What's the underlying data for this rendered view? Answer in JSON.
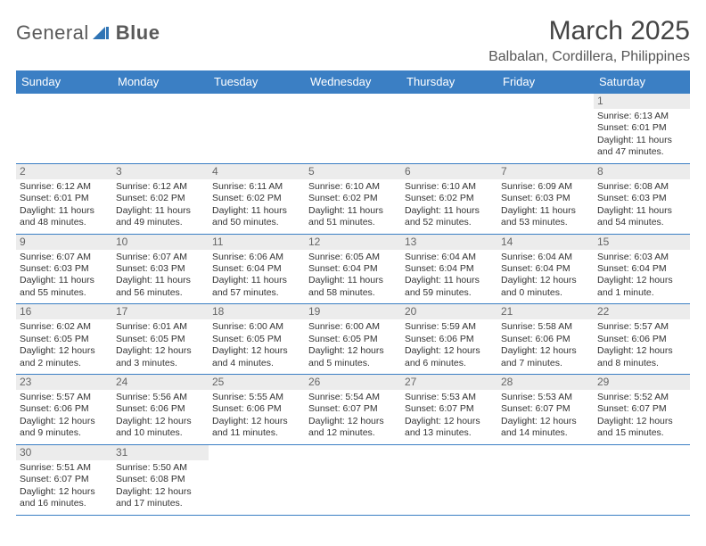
{
  "logo": {
    "text_a": "General",
    "text_b": "Blue"
  },
  "header": {
    "month": "March 2025",
    "location": "Balbalan, Cordillera, Philippines"
  },
  "colors": {
    "header_blue": "#3b7fc4",
    "grid_line": "#3b7fc4"
  },
  "dow": [
    "Sunday",
    "Monday",
    "Tuesday",
    "Wednesday",
    "Thursday",
    "Friday",
    "Saturday"
  ],
  "weeks": [
    [
      {
        "n": "",
        "sr": "",
        "ss": "",
        "dl": ""
      },
      {
        "n": "",
        "sr": "",
        "ss": "",
        "dl": ""
      },
      {
        "n": "",
        "sr": "",
        "ss": "",
        "dl": ""
      },
      {
        "n": "",
        "sr": "",
        "ss": "",
        "dl": ""
      },
      {
        "n": "",
        "sr": "",
        "ss": "",
        "dl": ""
      },
      {
        "n": "",
        "sr": "",
        "ss": "",
        "dl": ""
      },
      {
        "n": "1",
        "sr": "Sunrise: 6:13 AM",
        "ss": "Sunset: 6:01 PM",
        "dl": "Daylight: 11 hours and 47 minutes."
      }
    ],
    [
      {
        "n": "2",
        "sr": "Sunrise: 6:12 AM",
        "ss": "Sunset: 6:01 PM",
        "dl": "Daylight: 11 hours and 48 minutes."
      },
      {
        "n": "3",
        "sr": "Sunrise: 6:12 AM",
        "ss": "Sunset: 6:02 PM",
        "dl": "Daylight: 11 hours and 49 minutes."
      },
      {
        "n": "4",
        "sr": "Sunrise: 6:11 AM",
        "ss": "Sunset: 6:02 PM",
        "dl": "Daylight: 11 hours and 50 minutes."
      },
      {
        "n": "5",
        "sr": "Sunrise: 6:10 AM",
        "ss": "Sunset: 6:02 PM",
        "dl": "Daylight: 11 hours and 51 minutes."
      },
      {
        "n": "6",
        "sr": "Sunrise: 6:10 AM",
        "ss": "Sunset: 6:02 PM",
        "dl": "Daylight: 11 hours and 52 minutes."
      },
      {
        "n": "7",
        "sr": "Sunrise: 6:09 AM",
        "ss": "Sunset: 6:03 PM",
        "dl": "Daylight: 11 hours and 53 minutes."
      },
      {
        "n": "8",
        "sr": "Sunrise: 6:08 AM",
        "ss": "Sunset: 6:03 PM",
        "dl": "Daylight: 11 hours and 54 minutes."
      }
    ],
    [
      {
        "n": "9",
        "sr": "Sunrise: 6:07 AM",
        "ss": "Sunset: 6:03 PM",
        "dl": "Daylight: 11 hours and 55 minutes."
      },
      {
        "n": "10",
        "sr": "Sunrise: 6:07 AM",
        "ss": "Sunset: 6:03 PM",
        "dl": "Daylight: 11 hours and 56 minutes."
      },
      {
        "n": "11",
        "sr": "Sunrise: 6:06 AM",
        "ss": "Sunset: 6:04 PM",
        "dl": "Daylight: 11 hours and 57 minutes."
      },
      {
        "n": "12",
        "sr": "Sunrise: 6:05 AM",
        "ss": "Sunset: 6:04 PM",
        "dl": "Daylight: 11 hours and 58 minutes."
      },
      {
        "n": "13",
        "sr": "Sunrise: 6:04 AM",
        "ss": "Sunset: 6:04 PM",
        "dl": "Daylight: 11 hours and 59 minutes."
      },
      {
        "n": "14",
        "sr": "Sunrise: 6:04 AM",
        "ss": "Sunset: 6:04 PM",
        "dl": "Daylight: 12 hours and 0 minutes."
      },
      {
        "n": "15",
        "sr": "Sunrise: 6:03 AM",
        "ss": "Sunset: 6:04 PM",
        "dl": "Daylight: 12 hours and 1 minute."
      }
    ],
    [
      {
        "n": "16",
        "sr": "Sunrise: 6:02 AM",
        "ss": "Sunset: 6:05 PM",
        "dl": "Daylight: 12 hours and 2 minutes."
      },
      {
        "n": "17",
        "sr": "Sunrise: 6:01 AM",
        "ss": "Sunset: 6:05 PM",
        "dl": "Daylight: 12 hours and 3 minutes."
      },
      {
        "n": "18",
        "sr": "Sunrise: 6:00 AM",
        "ss": "Sunset: 6:05 PM",
        "dl": "Daylight: 12 hours and 4 minutes."
      },
      {
        "n": "19",
        "sr": "Sunrise: 6:00 AM",
        "ss": "Sunset: 6:05 PM",
        "dl": "Daylight: 12 hours and 5 minutes."
      },
      {
        "n": "20",
        "sr": "Sunrise: 5:59 AM",
        "ss": "Sunset: 6:06 PM",
        "dl": "Daylight: 12 hours and 6 minutes."
      },
      {
        "n": "21",
        "sr": "Sunrise: 5:58 AM",
        "ss": "Sunset: 6:06 PM",
        "dl": "Daylight: 12 hours and 7 minutes."
      },
      {
        "n": "22",
        "sr": "Sunrise: 5:57 AM",
        "ss": "Sunset: 6:06 PM",
        "dl": "Daylight: 12 hours and 8 minutes."
      }
    ],
    [
      {
        "n": "23",
        "sr": "Sunrise: 5:57 AM",
        "ss": "Sunset: 6:06 PM",
        "dl": "Daylight: 12 hours and 9 minutes."
      },
      {
        "n": "24",
        "sr": "Sunrise: 5:56 AM",
        "ss": "Sunset: 6:06 PM",
        "dl": "Daylight: 12 hours and 10 minutes."
      },
      {
        "n": "25",
        "sr": "Sunrise: 5:55 AM",
        "ss": "Sunset: 6:06 PM",
        "dl": "Daylight: 12 hours and 11 minutes."
      },
      {
        "n": "26",
        "sr": "Sunrise: 5:54 AM",
        "ss": "Sunset: 6:07 PM",
        "dl": "Daylight: 12 hours and 12 minutes."
      },
      {
        "n": "27",
        "sr": "Sunrise: 5:53 AM",
        "ss": "Sunset: 6:07 PM",
        "dl": "Daylight: 12 hours and 13 minutes."
      },
      {
        "n": "28",
        "sr": "Sunrise: 5:53 AM",
        "ss": "Sunset: 6:07 PM",
        "dl": "Daylight: 12 hours and 14 minutes."
      },
      {
        "n": "29",
        "sr": "Sunrise: 5:52 AM",
        "ss": "Sunset: 6:07 PM",
        "dl": "Daylight: 12 hours and 15 minutes."
      }
    ],
    [
      {
        "n": "30",
        "sr": "Sunrise: 5:51 AM",
        "ss": "Sunset: 6:07 PM",
        "dl": "Daylight: 12 hours and 16 minutes."
      },
      {
        "n": "31",
        "sr": "Sunrise: 5:50 AM",
        "ss": "Sunset: 6:08 PM",
        "dl": "Daylight: 12 hours and 17 minutes."
      },
      {
        "n": "",
        "sr": "",
        "ss": "",
        "dl": ""
      },
      {
        "n": "",
        "sr": "",
        "ss": "",
        "dl": ""
      },
      {
        "n": "",
        "sr": "",
        "ss": "",
        "dl": ""
      },
      {
        "n": "",
        "sr": "",
        "ss": "",
        "dl": ""
      },
      {
        "n": "",
        "sr": "",
        "ss": "",
        "dl": ""
      }
    ]
  ]
}
